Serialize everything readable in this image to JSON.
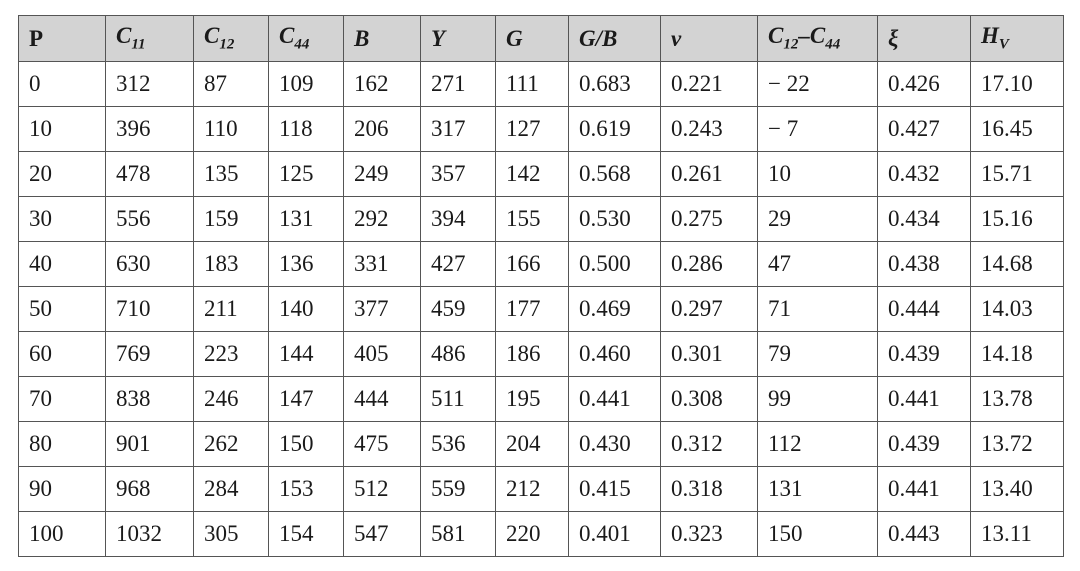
{
  "table": {
    "header": [
      [
        {
          "text": "P"
        }
      ],
      [
        {
          "text": "C"
        },
        {
          "sub": "11"
        }
      ],
      [
        {
          "text": "C"
        },
        {
          "sub": "12"
        }
      ],
      [
        {
          "text": "C"
        },
        {
          "sub": "44"
        }
      ],
      [
        {
          "text": "B"
        }
      ],
      [
        {
          "text": "Y"
        }
      ],
      [
        {
          "text": "G"
        }
      ],
      [
        {
          "text": "G/B"
        }
      ],
      [
        {
          "text": "ν"
        }
      ],
      [
        {
          "text": "C"
        },
        {
          "sub": "12"
        },
        {
          "text": "–C"
        },
        {
          "sub": "44"
        }
      ],
      [
        {
          "text": "ξ"
        }
      ],
      [
        {
          "text": "H"
        },
        {
          "sub": "V"
        }
      ]
    ],
    "rows": [
      [
        "0",
        "312",
        "87",
        "109",
        "162",
        "271",
        "111",
        "0.683",
        "0.221",
        "− 22",
        "0.426",
        "17.10"
      ],
      [
        "10",
        "396",
        "110",
        "118",
        "206",
        "317",
        "127",
        "0.619",
        "0.243",
        "− 7",
        "0.427",
        "16.45"
      ],
      [
        "20",
        "478",
        "135",
        "125",
        "249",
        "357",
        "142",
        "0.568",
        "0.261",
        "10",
        "0.432",
        "15.71"
      ],
      [
        "30",
        "556",
        "159",
        "131",
        "292",
        "394",
        "155",
        "0.530",
        "0.275",
        "29",
        "0.434",
        "15.16"
      ],
      [
        "40",
        "630",
        "183",
        "136",
        "331",
        "427",
        "166",
        "0.500",
        "0.286",
        "47",
        "0.438",
        "14.68"
      ],
      [
        "50",
        "710",
        "211",
        "140",
        "377",
        "459",
        "177",
        "0.469",
        "0.297",
        "71",
        "0.444",
        "14.03"
      ],
      [
        "60",
        "769",
        "223",
        "144",
        "405",
        "486",
        "186",
        "0.460",
        "0.301",
        "79",
        "0.439",
        "14.18"
      ],
      [
        "70",
        "838",
        "246",
        "147",
        "444",
        "511",
        "195",
        "0.441",
        "0.308",
        "99",
        "0.441",
        "13.78"
      ],
      [
        "80",
        "901",
        "262",
        "150",
        "475",
        "536",
        "204",
        "0.430",
        "0.312",
        "112",
        "0.439",
        "13.72"
      ],
      [
        "90",
        "968",
        "284",
        "153",
        "512",
        "559",
        "212",
        "0.415",
        "0.318",
        "131",
        "0.441",
        "13.40"
      ],
      [
        "100",
        "1032",
        "305",
        "154",
        "547",
        "581",
        "220",
        "0.401",
        "0.323",
        "150",
        "0.443",
        "13.11"
      ]
    ]
  }
}
